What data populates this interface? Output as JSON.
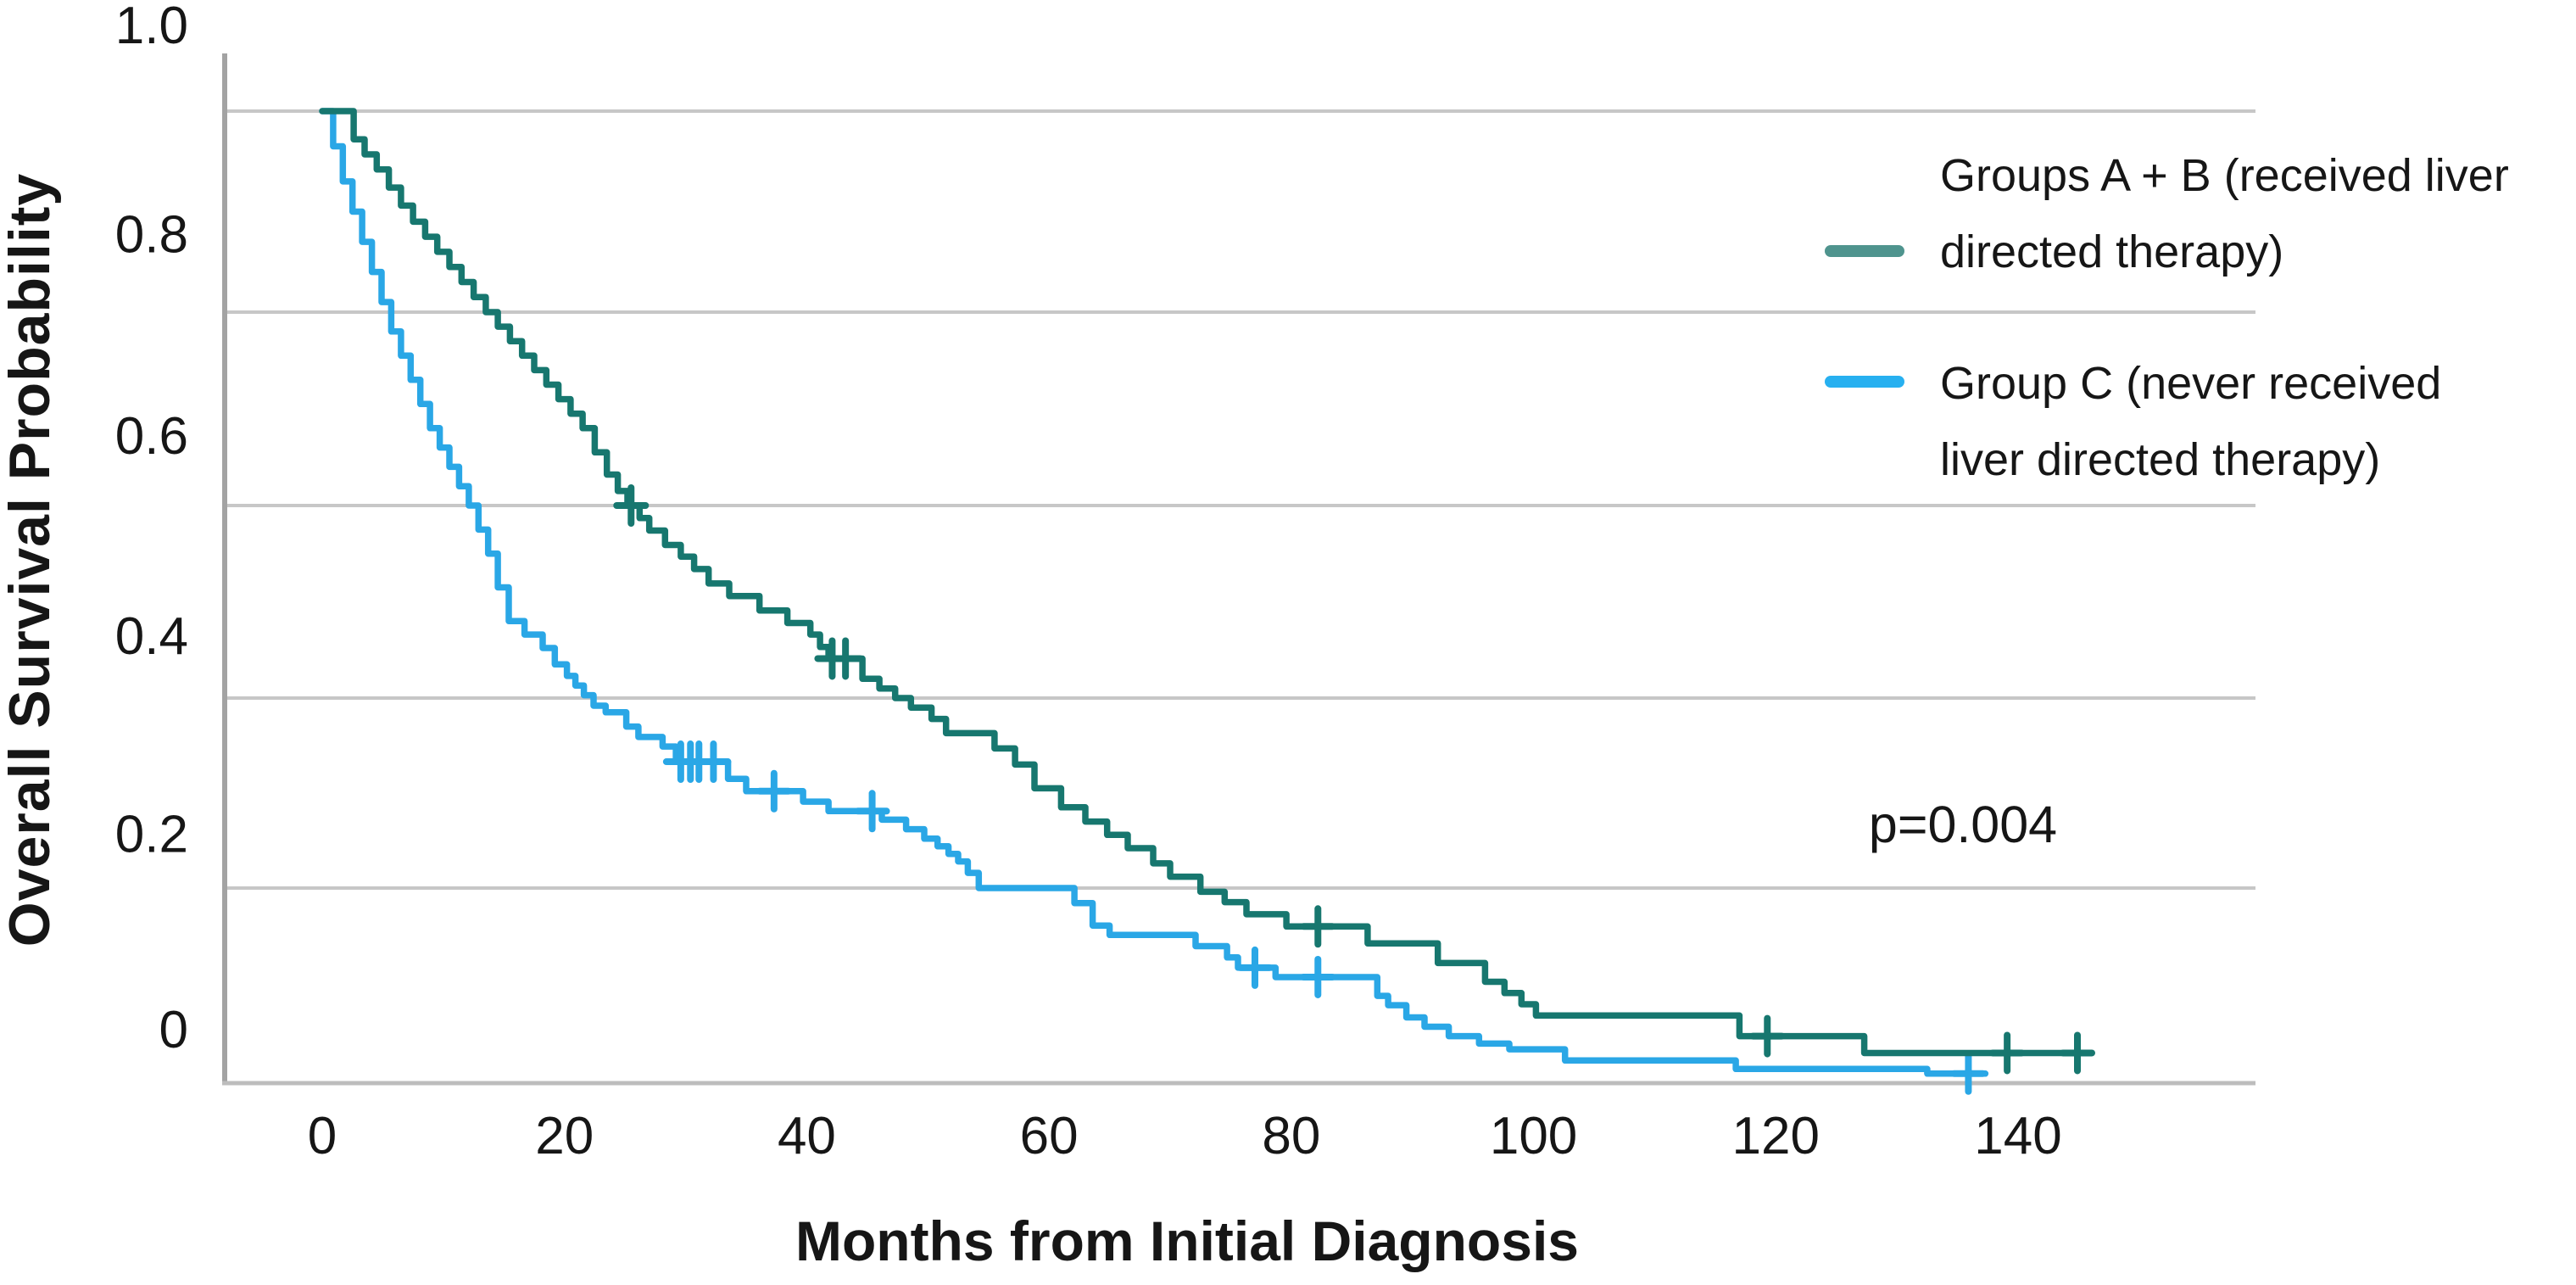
{
  "figure": {
    "y_axis": {
      "title": "Overall Survival Probability",
      "ticks": [
        {
          "label": "1.0",
          "value": 1.0
        },
        {
          "label": "0.8",
          "value": 0.8
        },
        {
          "label": "0.6",
          "value": 0.6
        },
        {
          "label": "0.4",
          "value": 0.4
        },
        {
          "label": "0.2",
          "value": 0.2
        },
        {
          "label": "0",
          "value": 0.0
        }
      ]
    },
    "x_axis": {
      "title": "Months from Initial Diagnosis",
      "ticks": [
        {
          "label": "0",
          "value": 0
        },
        {
          "label": "20",
          "value": 20
        },
        {
          "label": "40",
          "value": 40
        },
        {
          "label": "60",
          "value": 60
        },
        {
          "label": "80",
          "value": 80
        },
        {
          "label": "100",
          "value": 100
        },
        {
          "label": "120",
          "value": 120
        },
        {
          "label": "140",
          "value": 140
        }
      ]
    },
    "annotation": {
      "p_value": "p=0.004"
    },
    "legend": [
      {
        "lines": [
          "Groups A + B (received liver",
          "directed therapy)"
        ],
        "swatch_color": "#4f948e"
      },
      {
        "lines": [
          "Group C (never received",
          "liver directed therapy)"
        ],
        "swatch_color": "#27b0f0"
      }
    ],
    "colors": {
      "groups_ab_curve": "#17776f",
      "group_c_curve": "#2aa7e6",
      "gridline": "#c7c7c7",
      "axis": "#adadad",
      "text": "#161616"
    }
  },
  "chart_data": {
    "type": "line",
    "subtype": "kaplan_meier_step_survival",
    "title": "",
    "xlabel": "Months from Initial Diagnosis",
    "ylabel": "Overall Survival Probability",
    "xlim": [
      0,
      160
    ],
    "ylim": [
      0,
      1.0
    ],
    "grid": "horizontal",
    "legend_position": "right",
    "annotations": [
      {
        "text": "p=0.004",
        "month": 135.4,
        "probability": 0.27
      }
    ],
    "series": [
      {
        "name": "Groups A + B (received liver directed therapy)",
        "color": "#17776f",
        "end_month": 146,
        "steps": [
          [
            0,
            1.0
          ],
          [
            2.6,
            0.972
          ],
          [
            3.5,
            0.957
          ],
          [
            4.5,
            0.942
          ],
          [
            5.5,
            0.924
          ],
          [
            6.5,
            0.906
          ],
          [
            7.5,
            0.89
          ],
          [
            8.5,
            0.875
          ],
          [
            9.5,
            0.86
          ],
          [
            10.5,
            0.845
          ],
          [
            11.5,
            0.83
          ],
          [
            12.5,
            0.815
          ],
          [
            13.5,
            0.8
          ],
          [
            14.5,
            0.785
          ],
          [
            15.5,
            0.77
          ],
          [
            16.5,
            0.755
          ],
          [
            17.5,
            0.74
          ],
          [
            18.5,
            0.725
          ],
          [
            19.5,
            0.71
          ],
          [
            20.5,
            0.695
          ],
          [
            21.5,
            0.68
          ],
          [
            22.5,
            0.655
          ],
          [
            23.5,
            0.632
          ],
          [
            24.4,
            0.615
          ],
          [
            25.2,
            0.6
          ],
          [
            26.2,
            0.587
          ],
          [
            27.0,
            0.574
          ],
          [
            28.3,
            0.559
          ],
          [
            29.6,
            0.547
          ],
          [
            30.7,
            0.534
          ],
          [
            31.9,
            0.519
          ],
          [
            33.6,
            0.506
          ],
          [
            36.1,
            0.491
          ],
          [
            38.4,
            0.478
          ],
          [
            40.3,
            0.466
          ],
          [
            41.1,
            0.453
          ],
          [
            41.8,
            0.441
          ],
          [
            44.6,
            0.42
          ],
          [
            46.0,
            0.41
          ],
          [
            47.3,
            0.4
          ],
          [
            48.6,
            0.39
          ],
          [
            50.3,
            0.378
          ],
          [
            51.5,
            0.363
          ],
          [
            55.5,
            0.347
          ],
          [
            57.2,
            0.33
          ],
          [
            58.8,
            0.305
          ],
          [
            61.0,
            0.285
          ],
          [
            63.0,
            0.27
          ],
          [
            64.8,
            0.256
          ],
          [
            66.5,
            0.242
          ],
          [
            68.6,
            0.226
          ],
          [
            70.0,
            0.212
          ],
          [
            72.5,
            0.196
          ],
          [
            74.5,
            0.185
          ],
          [
            76.3,
            0.172
          ],
          [
            79.6,
            0.159
          ],
          [
            86.3,
            0.141
          ],
          [
            92.1,
            0.12
          ],
          [
            96.0,
            0.1
          ],
          [
            97.6,
            0.088
          ],
          [
            99.0,
            0.076
          ],
          [
            100.2,
            0.064
          ],
          [
            117.0,
            0.042
          ],
          [
            127.3,
            0.024
          ]
        ],
        "censor_marks": [
          [
            25.5,
            0.6
          ],
          [
            42.1,
            0.441
          ],
          [
            43.2,
            0.441
          ],
          [
            82.2,
            0.159
          ],
          [
            119.3,
            0.042
          ],
          [
            139.1,
            0.024
          ],
          [
            144.9,
            0.024
          ]
        ]
      },
      {
        "name": "Group C (never received liver directed therapy)",
        "color": "#2aa7e6",
        "end_month": 137.3,
        "steps": [
          [
            0,
            1.0
          ],
          [
            0.9,
            0.965
          ],
          [
            1.7,
            0.93
          ],
          [
            2.5,
            0.9
          ],
          [
            3.3,
            0.87
          ],
          [
            4.1,
            0.84
          ],
          [
            4.9,
            0.81
          ],
          [
            5.7,
            0.78
          ],
          [
            6.5,
            0.755
          ],
          [
            7.3,
            0.73
          ],
          [
            8.1,
            0.705
          ],
          [
            8.9,
            0.68
          ],
          [
            9.7,
            0.66
          ],
          [
            10.5,
            0.64
          ],
          [
            11.3,
            0.62
          ],
          [
            12.1,
            0.6
          ],
          [
            12.9,
            0.575
          ],
          [
            13.7,
            0.55
          ],
          [
            14.5,
            0.515
          ],
          [
            15.4,
            0.48
          ],
          [
            16.7,
            0.466
          ],
          [
            18.2,
            0.452
          ],
          [
            19.2,
            0.435
          ],
          [
            20.2,
            0.423
          ],
          [
            20.9,
            0.413
          ],
          [
            21.6,
            0.403
          ],
          [
            22.4,
            0.392
          ],
          [
            23.4,
            0.385
          ],
          [
            25.1,
            0.37
          ],
          [
            26.1,
            0.359
          ],
          [
            28.1,
            0.349
          ],
          [
            29.2,
            0.333
          ],
          [
            33.5,
            0.315
          ],
          [
            35.0,
            0.302
          ],
          [
            39.7,
            0.291
          ],
          [
            41.8,
            0.281
          ],
          [
            46.2,
            0.272
          ],
          [
            48.2,
            0.262
          ],
          [
            49.7,
            0.252
          ],
          [
            50.8,
            0.244
          ],
          [
            51.7,
            0.236
          ],
          [
            52.5,
            0.228
          ],
          [
            53.3,
            0.216
          ],
          [
            54.2,
            0.2
          ],
          [
            62.1,
            0.184
          ],
          [
            63.6,
            0.16
          ],
          [
            65.0,
            0.15
          ],
          [
            72.1,
            0.138
          ],
          [
            74.7,
            0.126
          ],
          [
            75.6,
            0.115
          ],
          [
            78.7,
            0.105
          ],
          [
            87.1,
            0.085
          ],
          [
            88.0,
            0.075
          ],
          [
            89.5,
            0.062
          ],
          [
            91.0,
            0.052
          ],
          [
            93.0,
            0.042
          ],
          [
            95.5,
            0.034
          ],
          [
            98.0,
            0.028
          ],
          [
            102.6,
            0.016
          ],
          [
            116.7,
            0.007
          ],
          [
            132.5,
            0.002
          ]
        ],
        "censor_marks": [
          [
            29.6,
            0.333
          ],
          [
            30.4,
            0.333
          ],
          [
            31.1,
            0.333
          ],
          [
            32.3,
            0.333
          ],
          [
            37.3,
            0.302
          ],
          [
            45.4,
            0.281
          ],
          [
            77.0,
            0.115
          ],
          [
            82.2,
            0.105
          ],
          [
            135.9,
            0.002
          ]
        ]
      }
    ]
  }
}
